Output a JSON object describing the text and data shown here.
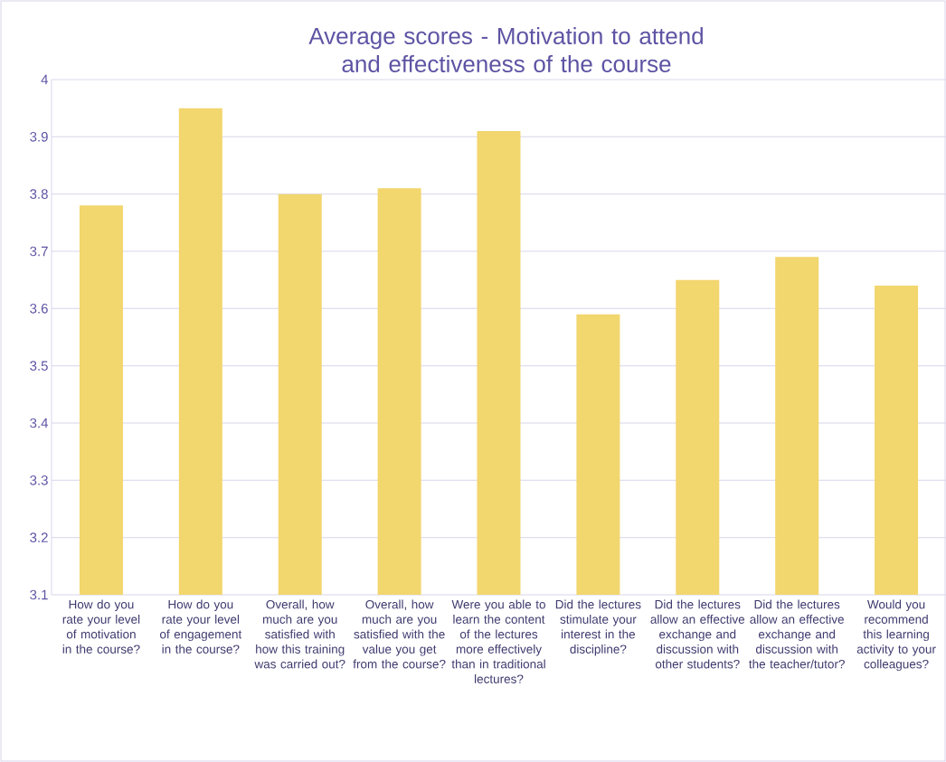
{
  "chart_data": {
    "type": "bar",
    "title": "Average scores - Motivation to attend and effectiveness of the course",
    "categories": [
      "How do you rate your level of motivation in the course?",
      "How do you rate your level of engagement in the course?",
      "Overall, how much are you satisfied with how this training was carried out?",
      "Overall, how much are you satisfied with the value you get from the course?",
      "Were you able to learn the content of the lectures more effectively than in traditional lectures?",
      "Did the lectures stimulate your interest in the discipline?",
      "Did the lectures allow an effective exchange and discussion with other students?",
      "Did the lectures allow an effective exchange and discussion with the teacher/tutor?",
      "Would you recommend this learning activity to your colleagues?"
    ],
    "values": [
      3.78,
      3.95,
      3.8,
      3.81,
      3.91,
      3.59,
      3.65,
      3.69,
      3.64
    ],
    "color": "#f2d66e",
    "ylim": [
      3.1,
      4
    ],
    "yticks": [
      3.1,
      3.2,
      3.3,
      3.4,
      3.5,
      3.6,
      3.7,
      3.8,
      3.9,
      4
    ],
    "grid": "y"
  }
}
